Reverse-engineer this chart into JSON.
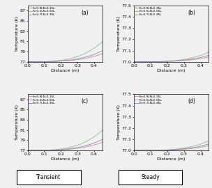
{
  "legend_labels": [
    "Fv:0.9LN₂0.1N₂",
    "Fv:0.5LN₂0.5N₂",
    "Fv:0.7LN₂0.3N₂"
  ],
  "line_colors": [
    "#d08080",
    "#80b880",
    "#8080c8"
  ],
  "subplot_labels": [
    "(a)",
    "(b)",
    "(c)",
    "(d)"
  ],
  "xlabel": "Distance (m)",
  "ylabel": "Temperature (K)",
  "xlim": [
    0,
    0.45
  ],
  "subplot_a_ylim": [
    77,
    88
  ],
  "subplot_a_yticks": [
    77,
    79,
    81,
    83,
    85,
    87
  ],
  "subplot_b_ylim": [
    77,
    77.5
  ],
  "subplot_b_yticks": [
    77,
    77.1,
    77.2,
    77.3,
    77.4,
    77.5
  ],
  "subplot_c_ylim": [
    77,
    88
  ],
  "subplot_c_yticks": [
    77,
    79,
    81,
    83,
    85,
    87
  ],
  "subplot_d_ylim": [
    77,
    77.5
  ],
  "subplot_d_yticks": [
    77,
    77.1,
    77.2,
    77.3,
    77.4,
    77.5
  ],
  "xticks": [
    0,
    0.1,
    0.2,
    0.3,
    0.4
  ],
  "transient_label": "Transient",
  "steady_label": "Steady",
  "background_color": "#f0f0f0",
  "fontsize_tick": 4.5,
  "fontsize_label": 4.5,
  "fontsize_legend": 3.2,
  "fontsize_sublabel": 5.5
}
